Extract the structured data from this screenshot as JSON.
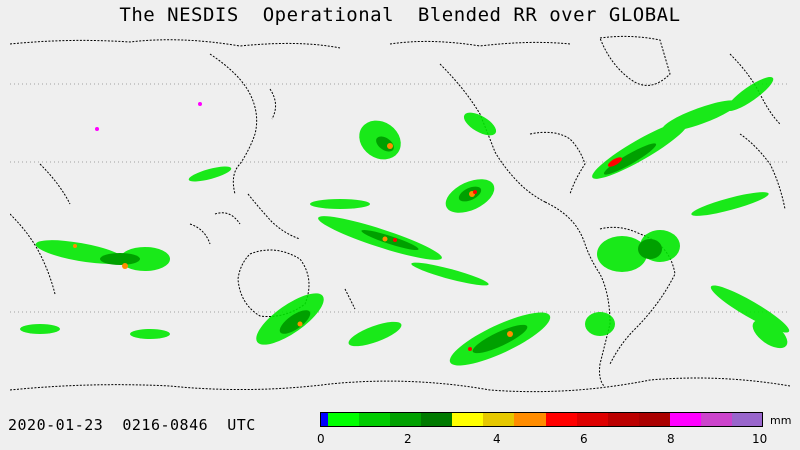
{
  "title": "The NESDIS  Operational  Blended RR over GLOBAL",
  "timestamp": "2020-01-23  0216-0846  UTC",
  "unit": "mm",
  "scale": {
    "colors": [
      "#0000ff",
      "#00ff00",
      "#00cc00",
      "#00a000",
      "#007a00",
      "#ffff00",
      "#e6c800",
      "#ff8c00",
      "#ff0000",
      "#dd0000",
      "#bb0000",
      "#aa0000",
      "#ff00ff",
      "#cc44cc",
      "#9966cc"
    ],
    "ticks": [
      "0",
      "2",
      "4",
      "6",
      "8",
      "10"
    ]
  },
  "colors": {
    "background": "#efefef",
    "coastline": "#000000",
    "rain_light": "#00ff00",
    "rain_moderate": "#00aa00",
    "rain_heavy": "#ff8c00",
    "rain_extreme": "#ff0000"
  }
}
